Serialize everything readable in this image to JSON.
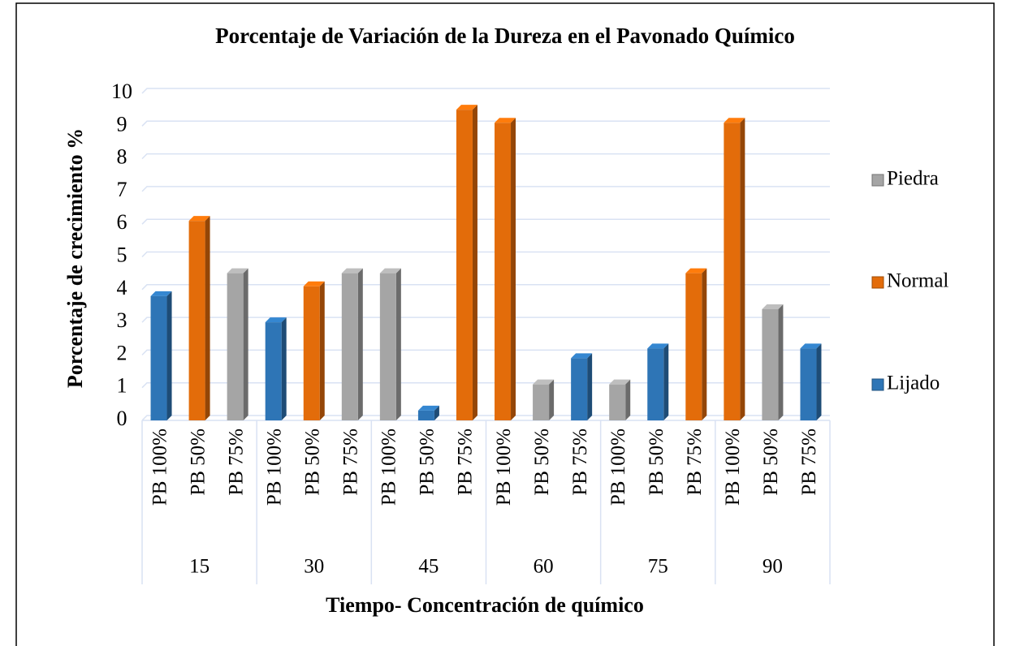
{
  "chart_data": {
    "type": "bar",
    "title": "Porcentaje de Variación de la Dureza en el Pavonado Químico",
    "x_label": "Tiempo- Concentración de químico",
    "y_label": "Porcentaje de crecimiento %",
    "groups": [
      "15",
      "30",
      "45",
      "60",
      "75",
      "90"
    ],
    "categories": [
      "PB 100%",
      "PB 50%",
      "PB 75%",
      "PB 100%",
      "PB 50%",
      "PB 75%",
      "PB 100%",
      "PB 50%",
      "PB 75%",
      "PB 100%",
      "PB 50%",
      "PB 75%",
      "PB 100%",
      "PB 50%",
      "PB 75%",
      "PB 100%",
      "PB 50%",
      "PB 75%"
    ],
    "series": [
      {
        "name": "Piedra",
        "color": "#a5a5a5",
        "values": [
          null,
          null,
          4.5,
          null,
          null,
          4.5,
          4.5,
          null,
          null,
          null,
          1.1,
          null,
          1.1,
          null,
          null,
          null,
          3.4,
          null
        ]
      },
      {
        "name": "Normal",
        "color": "#e36c0a",
        "values": [
          null,
          6.1,
          null,
          null,
          4.1,
          null,
          null,
          null,
          9.5,
          9.1,
          null,
          null,
          null,
          null,
          4.5,
          9.1,
          null,
          null
        ]
      },
      {
        "name": "Lijado",
        "color": "#2e75b6",
        "values": [
          3.8,
          null,
          null,
          3.0,
          null,
          null,
          null,
          0.3,
          null,
          null,
          null,
          1.9,
          null,
          2.2,
          null,
          null,
          null,
          2.2
        ]
      }
    ],
    "ylim": [
      0,
      10
    ],
    "yticks": [
      0,
      1,
      2,
      3,
      4,
      5,
      6,
      7,
      8,
      9,
      10
    ],
    "grid": true,
    "legend": "right"
  }
}
